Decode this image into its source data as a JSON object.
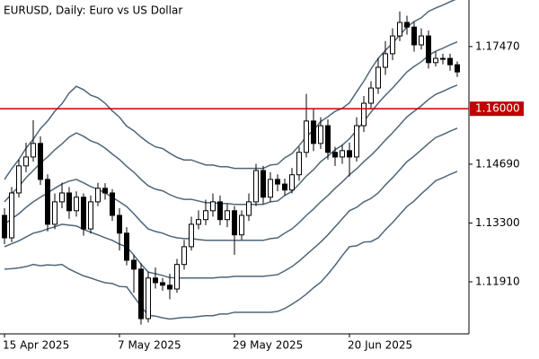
{
  "chart_data": {
    "type": "candlestick",
    "title": "EURUSD, Daily:  Euro vs US Dollar",
    "categories": [
      "15 Apr 2025",
      null,
      null,
      null,
      null,
      null,
      null,
      null,
      null,
      null,
      null,
      null,
      null,
      null,
      null,
      null,
      "7 May 2025",
      null,
      null,
      null,
      null,
      null,
      null,
      null,
      null,
      null,
      null,
      null,
      null,
      null,
      null,
      null,
      "29 May 2025",
      null,
      null,
      null,
      null,
      null,
      null,
      null,
      null,
      null,
      null,
      null,
      null,
      null,
      null,
      null,
      "20 Jun 2025",
      null,
      null,
      null,
      null,
      null,
      null,
      null,
      null,
      null,
      null,
      null,
      null,
      null,
      null,
      null
    ],
    "open": [
      1.1348,
      1.1295,
      1.1401,
      1.1465,
      1.1486,
      1.1518,
      1.1433,
      1.1327,
      1.138,
      1.1401,
      1.1359,
      1.1391,
      1.1316,
      1.138,
      1.1412,
      1.1401,
      1.1348,
      1.1306,
      1.1242,
      1.1221,
      1.1104,
      1.12,
      1.1189,
      1.1183,
      1.1174,
      1.1232,
      1.1274,
      1.1327,
      1.1338,
      1.1359,
      1.138,
      1.1338,
      1.1359,
      1.1302,
      1.1348,
      1.138,
      1.1454,
      1.1391,
      1.1433,
      1.1422,
      1.1408,
      1.1444,
      1.1497,
      1.1571,
      1.1518,
      1.156,
      1.1497,
      1.1486,
      1.1501,
      1.1486,
      1.156,
      1.1613,
      1.1649,
      1.1698,
      1.173,
      1.1772,
      1.1804,
      1.1793,
      1.1751,
      1.1772,
      1.1709,
      1.1719,
      1.1719,
      1.1704
    ],
    "high": [
      1.1365,
      1.1415,
      1.148,
      1.152,
      1.1573,
      1.1535,
      1.1445,
      1.14,
      1.1425,
      1.1415,
      1.1405,
      1.14,
      1.1395,
      1.1425,
      1.1424,
      1.141,
      1.1365,
      1.132,
      1.1255,
      1.1235,
      1.1215,
      1.1225,
      1.12,
      1.121,
      1.1245,
      1.129,
      1.1345,
      1.136,
      1.1385,
      1.14,
      1.1395,
      1.1375,
      1.137,
      1.136,
      1.14,
      1.147,
      1.1465,
      1.145,
      1.1445,
      1.1435,
      1.146,
      1.151,
      1.1635,
      1.16,
      1.158,
      1.1575,
      1.151,
      1.1515,
      1.152,
      1.158,
      1.163,
      1.1665,
      1.172,
      1.176,
      1.179,
      1.183,
      1.182,
      1.1805,
      1.179,
      1.1785,
      1.1735,
      1.173,
      1.173,
      1.1712
    ],
    "low": [
      1.128,
      1.1285,
      1.139,
      1.145,
      1.1475,
      1.142,
      1.131,
      1.1315,
      1.1365,
      1.134,
      1.1345,
      1.13,
      1.1305,
      1.137,
      1.1385,
      1.1335,
      1.1265,
      1.123,
      1.1165,
      1.109,
      1.1095,
      1.1175,
      1.117,
      1.115,
      1.1165,
      1.122,
      1.1265,
      1.1315,
      1.1325,
      1.1345,
      1.1325,
      1.132,
      1.1255,
      1.129,
      1.1335,
      1.137,
      1.1375,
      1.138,
      1.1405,
      1.1395,
      1.14,
      1.143,
      1.1485,
      1.15,
      1.1505,
      1.148,
      1.1465,
      1.147,
      1.144,
      1.1475,
      1.1545,
      1.16,
      1.1635,
      1.168,
      1.1715,
      1.176,
      1.1775,
      1.1735,
      1.174,
      1.1695,
      1.17,
      1.1705,
      1.169,
      1.1675
    ],
    "close": [
      1.1295,
      1.1401,
      1.1465,
      1.1486,
      1.1518,
      1.1433,
      1.1327,
      1.138,
      1.1401,
      1.1359,
      1.1391,
      1.1316,
      1.138,
      1.1412,
      1.1401,
      1.1348,
      1.1306,
      1.1242,
      1.1221,
      1.1104,
      1.12,
      1.1189,
      1.1183,
      1.1174,
      1.1232,
      1.1274,
      1.1327,
      1.1338,
      1.1359,
      1.138,
      1.1338,
      1.1359,
      1.1302,
      1.1348,
      1.138,
      1.1454,
      1.1391,
      1.1433,
      1.1422,
      1.1408,
      1.1444,
      1.1497,
      1.1571,
      1.1518,
      1.156,
      1.1497,
      1.1486,
      1.1501,
      1.1486,
      1.156,
      1.1613,
      1.1649,
      1.1698,
      1.173,
      1.1772,
      1.1804,
      1.1793,
      1.1751,
      1.1772,
      1.1709,
      1.1719,
      1.1719,
      1.1704,
      1.1687
    ],
    "up_color": "#ffffff",
    "down_color": "#000000",
    "bands": [
      {
        "color": "#4f6679",
        "values": [
          1.1433,
          1.1458,
          1.148,
          1.1507,
          1.1528,
          1.1553,
          1.1571,
          1.1594,
          1.1612,
          1.1637,
          1.1653,
          1.1645,
          1.1632,
          1.1626,
          1.1613,
          1.1595,
          1.158,
          1.1559,
          1.1548,
          1.1533,
          1.152,
          1.151,
          1.1506,
          1.1495,
          1.1485,
          1.1479,
          1.1479,
          1.1473,
          1.1467,
          1.1467,
          1.1463,
          1.1463,
          1.1459,
          1.1459,
          1.1459,
          1.1459,
          1.1459,
          1.1467,
          1.1469,
          1.1484,
          1.1494,
          1.1513,
          1.1534,
          1.1549,
          1.157,
          1.1581,
          1.1594,
          1.1601,
          1.1614,
          1.164,
          1.1665,
          1.1694,
          1.1719,
          1.1738,
          1.1755,
          1.1774,
          1.1793,
          1.1806,
          1.1815,
          1.183,
          1.1838,
          1.1845,
          1.1853,
          1.186
        ]
      },
      {
        "color": "#4f6679",
        "values": [
          1.138,
          1.1399,
          1.1416,
          1.1437,
          1.1454,
          1.1472,
          1.1486,
          1.1503,
          1.1517,
          1.1533,
          1.1543,
          1.1535,
          1.1524,
          1.1518,
          1.1507,
          1.1493,
          1.148,
          1.1464,
          1.145,
          1.1433,
          1.1418,
          1.141,
          1.1406,
          1.1397,
          1.139,
          1.1386,
          1.1386,
          1.1382,
          1.1378,
          1.1378,
          1.1376,
          1.1376,
          1.1374,
          1.1374,
          1.1374,
          1.1374,
          1.1374,
          1.138,
          1.1382,
          1.1395,
          1.1405,
          1.1422,
          1.1441,
          1.1456,
          1.1475,
          1.1488,
          1.1503,
          1.1514,
          1.1529,
          1.1549,
          1.157,
          1.1592,
          1.1613,
          1.1632,
          1.1649,
          1.1668,
          1.1687,
          1.17,
          1.1711,
          1.1726,
          1.1736,
          1.1743,
          1.1751,
          1.1758
        ]
      },
      {
        "color": "#4f6679",
        "values": [
          1.1327,
          1.134,
          1.1352,
          1.1367,
          1.138,
          1.1391,
          1.1401,
          1.1412,
          1.1422,
          1.1429,
          1.1433,
          1.1425,
          1.1416,
          1.141,
          1.1401,
          1.1391,
          1.138,
          1.1369,
          1.1352,
          1.1333,
          1.1316,
          1.131,
          1.1306,
          1.1299,
          1.1295,
          1.1293,
          1.1293,
          1.1291,
          1.1289,
          1.1289,
          1.1289,
          1.1289,
          1.1289,
          1.1289,
          1.1289,
          1.1289,
          1.1289,
          1.1293,
          1.1295,
          1.1306,
          1.1316,
          1.1331,
          1.1348,
          1.1363,
          1.138,
          1.1395,
          1.1412,
          1.1427,
          1.1444,
          1.1458,
          1.1475,
          1.149,
          1.1507,
          1.1526,
          1.1543,
          1.1562,
          1.1581,
          1.1594,
          1.1607,
          1.1622,
          1.1634,
          1.1641,
          1.1649,
          1.1656
        ]
      },
      {
        "color": "#4f6679",
        "values": [
          1.1274,
          1.1281,
          1.1288,
          1.1297,
          1.1306,
          1.131,
          1.1316,
          1.1321,
          1.1327,
          1.1325,
          1.1323,
          1.1315,
          1.1308,
          1.1302,
          1.1295,
          1.1289,
          1.128,
          1.1274,
          1.1254,
          1.1233,
          1.1214,
          1.121,
          1.1206,
          1.1201,
          1.12,
          1.12,
          1.12,
          1.12,
          1.12,
          1.12,
          1.1202,
          1.1202,
          1.1204,
          1.1204,
          1.1204,
          1.1204,
          1.1204,
          1.1206,
          1.1208,
          1.1217,
          1.1227,
          1.124,
          1.1255,
          1.127,
          1.1285,
          1.1302,
          1.1321,
          1.134,
          1.1359,
          1.1367,
          1.138,
          1.1388,
          1.1401,
          1.142,
          1.1437,
          1.1456,
          1.1475,
          1.1488,
          1.1503,
          1.1518,
          1.1532,
          1.1539,
          1.1547,
          1.1554
        ]
      },
      {
        "color": "#4f6679",
        "values": [
          1.1221,
          1.1222,
          1.1224,
          1.1227,
          1.1232,
          1.1229,
          1.1231,
          1.123,
          1.1232,
          1.1221,
          1.1213,
          1.1205,
          1.12,
          1.1194,
          1.1189,
          1.1187,
          1.118,
          1.1179,
          1.1156,
          1.1133,
          1.1112,
          1.111,
          1.1106,
          1.1103,
          1.1105,
          1.1107,
          1.1107,
          1.1109,
          1.1111,
          1.1111,
          1.1115,
          1.1115,
          1.1119,
          1.1119,
          1.1119,
          1.1119,
          1.1119,
          1.1119,
          1.1121,
          1.1128,
          1.1138,
          1.1149,
          1.1162,
          1.1177,
          1.119,
          1.1209,
          1.123,
          1.1253,
          1.1274,
          1.1276,
          1.1285,
          1.1286,
          1.1295,
          1.1314,
          1.1331,
          1.135,
          1.1369,
          1.1382,
          1.1399,
          1.1414,
          1.143,
          1.1437,
          1.1445,
          1.1452
        ]
      }
    ],
    "ylim": [
      1.1068,
      1.1857
    ],
    "yticks": [
      {
        "value": 1.1747,
        "label": "1.17470"
      },
      {
        "value": 1.1469,
        "label": "1.14690"
      },
      {
        "value": 1.133,
        "label": "1.13300"
      },
      {
        "value": 1.1191,
        "label": "1.11910"
      }
    ],
    "hline": {
      "value": 1.16,
      "label": "1.16000",
      "color": "#c00000"
    }
  }
}
